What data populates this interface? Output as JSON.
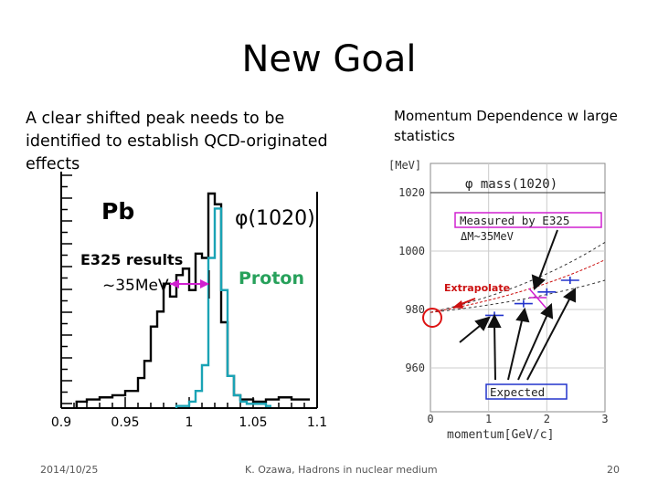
{
  "slide": {
    "title": "New Goal",
    "left_text": "A clear shifted peak needs to be identified to establish QCD-originated effects",
    "right_text": "Momentum Dependence w large statistics"
  },
  "left_figure": {
    "label_pb": "Pb",
    "label_phi": "φ(1020)",
    "label_results": "E325 results",
    "label_shift": "~35MeV",
    "label_proton": "Proton",
    "x_tick_labels": [
      "0.9",
      "0.95",
      "1",
      "1.05",
      "1.1"
    ],
    "colors": {
      "pb": "#000000",
      "proton": "#1aa3b5",
      "arrow": "#d020d0",
      "proton_label": "#27a15b"
    }
  },
  "right_figure": {
    "y_unit": "[MeV]",
    "plot_title": "φ mass(1020)",
    "label_measured": "Measured by E325",
    "label_delta": "ΔM~35MeV",
    "label_extrapolate": "Extrapolate",
    "label_expected": "Expected",
    "x_axis_label": "momentum[GeV/c]",
    "colors": {
      "data": "#2233cc",
      "extrapolate": "#cc1111",
      "box_measured": "#d020d0",
      "box_expected": "#2233cc"
    }
  },
  "chart_data": [
    {
      "type": "line",
      "title": "φ(1020)",
      "xlabel": "",
      "ylabel": "",
      "x_ticks": [
        "0.9",
        "0.95",
        "1",
        "1.05",
        "1.1"
      ],
      "xlim": [
        0.9,
        1.1
      ],
      "series": [
        {
          "name": "Pb",
          "x": [
            0.912,
            0.92,
            0.93,
            0.94,
            0.95,
            0.96,
            0.965,
            0.97,
            0.975,
            0.98,
            0.985,
            0.99,
            0.995,
            1.0,
            1.005,
            1.01,
            1.015,
            1.02,
            1.025,
            1.03,
            1.035,
            1.04,
            1.05,
            1.06,
            1.07,
            1.08,
            1.09
          ],
          "y": [
            3,
            4,
            5,
            6,
            8,
            14,
            22,
            38,
            45,
            58,
            52,
            62,
            65,
            55,
            72,
            70,
            100,
            95,
            40,
            15,
            6,
            4,
            3,
            4,
            5,
            4,
            4
          ]
        },
        {
          "name": "Proton",
          "x": [
            0.99,
            1.0,
            1.005,
            1.01,
            1.015,
            1.02,
            1.025,
            1.03,
            1.035,
            1.04,
            1.045,
            1.05,
            1.06
          ],
          "y": [
            1,
            3,
            8,
            20,
            70,
            93,
            55,
            15,
            6,
            3,
            2,
            2,
            1
          ]
        }
      ]
    },
    {
      "type": "scatter",
      "title": "φ mass(1020)",
      "xlabel": "momentum[GeV/c]",
      "ylabel": "[MeV]",
      "xlim": [
        0,
        3
      ],
      "ylim": [
        945,
        1030
      ],
      "x_ticks": [
        0,
        1,
        2,
        3
      ],
      "y_ticks": [
        960,
        980,
        1000,
        1020
      ],
      "series": [
        {
          "name": "Measured by E325",
          "x": [
            1.1,
            1.6,
            2.0,
            2.4
          ],
          "y": [
            978,
            982,
            986,
            990
          ]
        }
      ]
    }
  ]
}
